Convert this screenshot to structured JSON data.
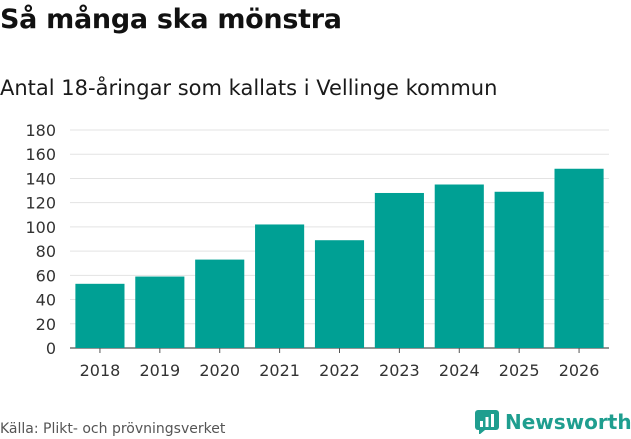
{
  "header": {
    "title": "Så många ska mönstra",
    "subtitle": "Antal 18-åringar som kallats i Vellinge kommun"
  },
  "footer": {
    "source": "Källa: Plikt- och prövningsverket",
    "brand": "Newsworthy"
  },
  "colors": {
    "bar": "#00a094",
    "grid": "#e3e3e3",
    "axis": "#555555",
    "brand": "#1f9e8f"
  },
  "chart_data": {
    "type": "bar",
    "title": "Så många ska mönstra",
    "subtitle": "Antal 18-åringar som kallats i Vellinge kommun",
    "xlabel": "",
    "ylabel": "",
    "categories": [
      "2018",
      "2019",
      "2020",
      "2021",
      "2022",
      "2023",
      "2024",
      "2025",
      "2026"
    ],
    "values": [
      53,
      59,
      73,
      102,
      89,
      128,
      135,
      129,
      148
    ],
    "ylim": [
      0,
      180
    ],
    "yticks": [
      0,
      20,
      40,
      60,
      80,
      100,
      120,
      140,
      160,
      180
    ],
    "grid": true,
    "legend": "none"
  }
}
